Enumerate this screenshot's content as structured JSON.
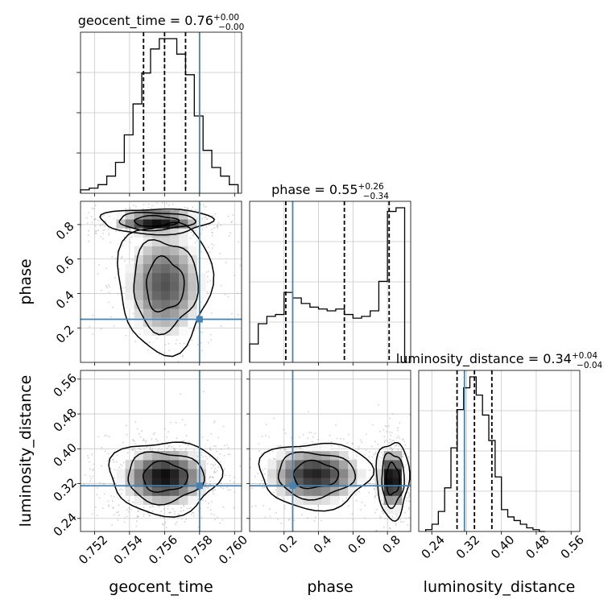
{
  "chart_data": {
    "type": "corner",
    "parameters": [
      "geocent_time",
      "phase",
      "luminosity_distance"
    ],
    "truth": {
      "geocent_time": 0.758,
      "phase": 0.25,
      "luminosity_distance": 0.315
    },
    "colors": {
      "truth": "#4682b4",
      "hist": "#000000",
      "grid": "#c8c8c8",
      "points": "#999999"
    },
    "marginals": [
      {
        "param": "geocent_time",
        "title_prefix": "geocent_time = ",
        "title_value": "0.76",
        "err_plus": "+0.00",
        "err_minus": "−0.00",
        "range": [
          0.7512,
          0.7604
        ],
        "quantiles": [
          0.7548,
          0.756,
          0.7572
        ],
        "bin_edges": [
          0.7512,
          0.7517,
          0.7522,
          0.7527,
          0.7532,
          0.7537,
          0.7542,
          0.7547,
          0.7552,
          0.7557,
          0.7562,
          0.7567,
          0.7572,
          0.7577,
          0.7582,
          0.7587,
          0.7592,
          0.7597,
          0.7602
        ],
        "counts": [
          2,
          3,
          5,
          10,
          18,
          34,
          52,
          70,
          84,
          90,
          90,
          81,
          69,
          45,
          25,
          15,
          10,
          5
        ],
        "ticks": [
          0.752,
          0.754,
          0.756,
          0.758,
          0.76
        ],
        "tick_labels": [
          "0.752",
          "0.754",
          "0.756",
          "0.758",
          "0.760"
        ]
      },
      {
        "param": "phase",
        "title_prefix": "phase = ",
        "title_value": "0.55",
        "err_plus": "+0.26",
        "err_minus": "−0.34",
        "range": [
          0.0,
          0.935
        ],
        "quantiles": [
          0.21,
          0.55,
          0.81
        ],
        "bin_edges": [
          0.0,
          0.05,
          0.1,
          0.15,
          0.2,
          0.25,
          0.3,
          0.35,
          0.4,
          0.45,
          0.5,
          0.55,
          0.6,
          0.65,
          0.7,
          0.75,
          0.8,
          0.85,
          0.9
        ],
        "counts": [
          10,
          21,
          25,
          26,
          38,
          35,
          32,
          30,
          29,
          28,
          29,
          26,
          24,
          25,
          28,
          44,
          82,
          84
        ],
        "ticks": [
          0.2,
          0.4,
          0.6,
          0.8
        ],
        "tick_labels": [
          "0.2",
          "0.4",
          "0.6",
          "0.8"
        ]
      },
      {
        "param": "luminosity_distance",
        "title_prefix": "luminosity_distance = ",
        "title_value": "0.34",
        "err_plus": "+0.04",
        "err_minus": "−0.04",
        "range": [
          0.21,
          0.58
        ],
        "quantiles": [
          0.298,
          0.338,
          0.378
        ],
        "bin_edges": [
          0.226,
          0.2405,
          0.255,
          0.2695,
          0.284,
          0.2985,
          0.313,
          0.3275,
          0.342,
          0.3565,
          0.371,
          0.3855,
          0.4,
          0.4145,
          0.429,
          0.4435,
          0.458,
          0.4725,
          0.487,
          0.5
        ],
        "counts": [
          1,
          4,
          11,
          24,
          46,
          67,
          79,
          85,
          75,
          64,
          50,
          30,
          12,
          8,
          6,
          4,
          2,
          1,
          0
        ],
        "ticks": [
          0.24,
          0.32,
          0.4,
          0.48,
          0.56
        ],
        "tick_labels": [
          "0.24",
          "0.32",
          "0.40",
          "0.48",
          "0.56"
        ]
      }
    ],
    "axis_labels": {
      "x": [
        "geocent_time",
        "phase",
        "luminosity_distance"
      ],
      "y": [
        "phase",
        "luminosity_distance"
      ]
    },
    "y_ticks": {
      "phase": {
        "ticks": [
          0.2,
          0.4,
          0.6,
          0.8
        ],
        "labels": [
          "0.2",
          "0.4",
          "0.6",
          "0.8"
        ]
      },
      "luminosity_distance": {
        "ticks": [
          0.24,
          0.32,
          0.4,
          0.48,
          0.56
        ],
        "labels": [
          "0.24",
          "0.32",
          "0.40",
          "0.48",
          "0.56"
        ]
      }
    },
    "joint_modes": [
      {
        "pair": [
          "geocent_time",
          "phase"
        ],
        "modes": [
          {
            "mx": 0.7555,
            "my": 0.82,
            "sx": 0.0015,
            "sy": 0.035,
            "weight": 0.55
          },
          {
            "mx": 0.756,
            "my": 0.45,
            "sx": 0.0014,
            "sy": 0.2,
            "weight": 0.45
          }
        ]
      },
      {
        "pair": [
          "geocent_time",
          "luminosity_distance"
        ],
        "modes": [
          {
            "mx": 0.756,
            "my": 0.335,
            "sx": 0.0015,
            "sy": 0.04,
            "weight": 1.0
          }
        ]
      },
      {
        "pair": [
          "phase",
          "luminosity_distance"
        ],
        "modes": [
          {
            "mx": 0.83,
            "my": 0.33,
            "sx": 0.045,
            "sy": 0.042,
            "weight": 0.55
          },
          {
            "mx": 0.38,
            "my": 0.34,
            "sx": 0.17,
            "sy": 0.04,
            "weight": 0.45
          }
        ]
      }
    ]
  }
}
